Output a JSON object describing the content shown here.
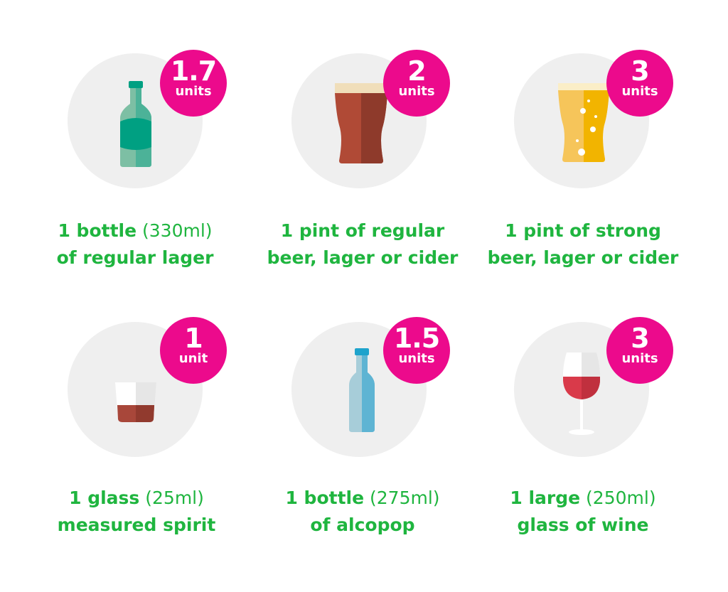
{
  "colors": {
    "accent_text": "#1fb53f",
    "badge": "#ec0a8c",
    "circle": "#efefef"
  },
  "items": [
    {
      "icon": "beer-bottle-icon",
      "units": "1.7",
      "unit_label": "units",
      "line1_bold": "1 bottle",
      "line1_regular": " (330ml)",
      "line2": "of regular lager"
    },
    {
      "icon": "pint-glass-regular-icon",
      "units": "2",
      "unit_label": "units",
      "line1_bold": "1 pint of regular",
      "line1_regular": "",
      "line2": "beer, lager or cider"
    },
    {
      "icon": "pint-glass-strong-icon",
      "units": "3",
      "unit_label": "units",
      "line1_bold": "1 pint of strong",
      "line1_regular": "",
      "line2": "beer, lager or cider"
    },
    {
      "icon": "spirit-glass-icon",
      "units": "1",
      "unit_label": "unit",
      "line1_bold": "1 glass",
      "line1_regular": " (25ml)",
      "line2": "measured spirit"
    },
    {
      "icon": "alcopop-bottle-icon",
      "units": "1.5",
      "unit_label": "units",
      "line1_bold": "1 bottle",
      "line1_regular": " (275ml)",
      "line2": "of alcopop"
    },
    {
      "icon": "wine-glass-icon",
      "units": "3",
      "unit_label": "units",
      "line1_bold": "1 large",
      "line1_regular": " (250ml)",
      "line2": "glass of wine"
    }
  ]
}
